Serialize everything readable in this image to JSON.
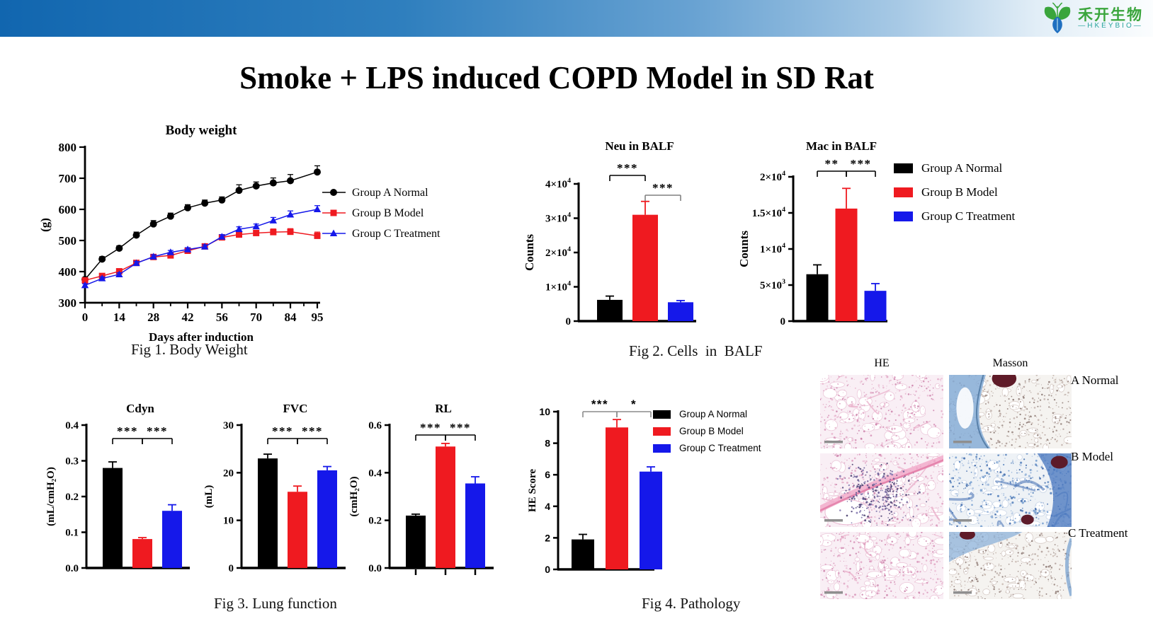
{
  "header": {
    "logo_cn": "禾开生物",
    "logo_en": "—HKEYBIO—"
  },
  "title": "Smoke + LPS induced COPD Model in SD Rat",
  "groups": [
    "Group A Normal",
    "Group B Model",
    "Group C Treatment"
  ],
  "colors": {
    "groupA": "#000000",
    "groupB": "#ef1a20",
    "groupC": "#1518ea",
    "topbar_left": "#1166af",
    "topbar_right": "#fbfdfe",
    "logo_green": "#3aa53c",
    "logo_teal": "#2aa49e",
    "bracket_gray": "#808080"
  },
  "captions": {
    "fig1": "Fig 1. Body Weight",
    "fig2": "Fig 2. Cells  in  BALF",
    "fig3": "Fig 3. Lung function",
    "fig4": "Fig 4. Pathology"
  },
  "chart_data": [
    {
      "id": "body_weight",
      "type": "line",
      "title": "Body weight",
      "ylabel": "(g)",
      "xlabel": "Days after induction",
      "ylim": [
        300,
        800
      ],
      "yticks": [
        300,
        400,
        500,
        600,
        700,
        800
      ],
      "xticks": [
        0,
        14,
        28,
        42,
        56,
        70,
        84,
        95
      ],
      "x": [
        0,
        7,
        14,
        21,
        28,
        35,
        42,
        49,
        56,
        63,
        70,
        77,
        84,
        95
      ],
      "series": [
        {
          "name": "Group A Normal",
          "color": "groupA",
          "marker": "circle",
          "values": [
            375,
            440,
            475,
            517,
            553,
            578,
            605,
            620,
            630,
            661,
            675,
            685,
            692,
            720
          ],
          "err": [
            6,
            8,
            8,
            10,
            11,
            10,
            10,
            10,
            10,
            18,
            13,
            16,
            20,
            20
          ]
        },
        {
          "name": "Group B Model",
          "color": "groupB",
          "marker": "square",
          "values": [
            372,
            386,
            401,
            428,
            447,
            452,
            467,
            481,
            510,
            519,
            524,
            527,
            528,
            515
          ],
          "err": [
            5,
            5,
            6,
            6,
            6,
            6,
            7,
            7,
            8,
            8,
            8,
            10,
            10,
            12
          ]
        },
        {
          "name": "Group C Treatment",
          "color": "groupC",
          "marker": "triangle",
          "values": [
            356,
            378,
            391,
            427,
            448,
            462,
            471,
            480,
            512,
            536,
            545,
            564,
            583,
            600
          ],
          "err": [
            5,
            5,
            5,
            6,
            6,
            6,
            6,
            6,
            7,
            8,
            8,
            10,
            12,
            12
          ]
        }
      ],
      "legend_position": "right"
    },
    {
      "id": "neu_balf",
      "type": "bar",
      "title": "Neu in BALF",
      "ylabel": "Counts",
      "categories": [
        "Group A Normal",
        "Group B Model",
        "Group C Treatment"
      ],
      "colors": [
        "groupA",
        "groupB",
        "groupC"
      ],
      "values": [
        6200,
        31000,
        5500
      ],
      "errors": [
        1100,
        3900,
        500
      ],
      "ylim": [
        0,
        40000
      ],
      "yticks": [
        [
          0,
          "0"
        ],
        [
          10000,
          "1×10",
          "4"
        ],
        [
          20000,
          "2×10",
          "4"
        ],
        [
          30000,
          "3×10",
          "4"
        ],
        [
          40000,
          "4×10",
          "4"
        ]
      ],
      "comparisons": [
        {
          "pair": [
            0,
            1
          ],
          "label": "***",
          "color": "#000000"
        },
        {
          "pair": [
            1,
            2
          ],
          "label": "***",
          "color": "#808080"
        }
      ]
    },
    {
      "id": "mac_balf",
      "type": "bar",
      "title": "Mac in BALF",
      "ylabel": "Counts",
      "categories": [
        "Group A Normal",
        "Group B Model",
        "Group C Treatment"
      ],
      "colors": [
        "groupA",
        "groupB",
        "groupC"
      ],
      "values": [
        6500,
        15600,
        4200
      ],
      "errors": [
        1300,
        2800,
        1000
      ],
      "ylim": [
        0,
        20000
      ],
      "yticks": [
        [
          0,
          "0"
        ],
        [
          5000,
          "5×10",
          "3"
        ],
        [
          10000,
          "1×10",
          "4"
        ],
        [
          15000,
          "1.5×10",
          "4"
        ],
        [
          20000,
          "2×10",
          "4"
        ]
      ],
      "comparisons": [
        {
          "pair": [
            0,
            1
          ],
          "label": "**",
          "color": "#000000"
        },
        {
          "pair": [
            1,
            2
          ],
          "label": "***",
          "color": "#000000"
        }
      ]
    },
    {
      "id": "cdyn",
      "type": "bar",
      "title": "Cdyn",
      "ylabel": "(mL/cmH₂O)",
      "categories": [
        "Group A Normal",
        "Group B Model",
        "Group C Treatment"
      ],
      "colors": [
        "groupA",
        "groupB",
        "groupC"
      ],
      "values": [
        0.28,
        0.081,
        0.16
      ],
      "errors": [
        0.017,
        0.004,
        0.017
      ],
      "ylim": [
        0,
        0.4
      ],
      "yticks": [
        [
          0,
          "0.0"
        ],
        [
          0.1,
          "0.1"
        ],
        [
          0.2,
          "0.2"
        ],
        [
          0.3,
          "0.3"
        ],
        [
          0.4,
          "0.4"
        ]
      ],
      "comparisons": [
        {
          "pair": [
            0,
            1
          ],
          "label": "***",
          "color": "#000000"
        },
        {
          "pair": [
            1,
            2
          ],
          "label": "***",
          "color": "#000000"
        }
      ]
    },
    {
      "id": "fvc",
      "type": "bar",
      "title": "FVC",
      "ylabel": "(mL)",
      "categories": [
        "Group A Normal",
        "Group B Model",
        "Group C Treatment"
      ],
      "colors": [
        "groupA",
        "groupB",
        "groupC"
      ],
      "values": [
        23,
        16,
        20.5
      ],
      "errors": [
        0.9,
        1.2,
        0.8
      ],
      "ylim": [
        0,
        30
      ],
      "yticks": [
        [
          0,
          "0"
        ],
        [
          10,
          "10"
        ],
        [
          20,
          "20"
        ],
        [
          30,
          "30"
        ]
      ],
      "comparisons": [
        {
          "pair": [
            0,
            1
          ],
          "label": "***",
          "color": "#000000"
        },
        {
          "pair": [
            1,
            2
          ],
          "label": "***",
          "color": "#000000"
        }
      ]
    },
    {
      "id": "rl",
      "type": "bar",
      "title": "RL",
      "ylabel": "(cmH₂O)",
      "categories": [
        "Group A Normal",
        "Group B Model",
        "Group C Treatment"
      ],
      "colors": [
        "groupA",
        "groupB",
        "groupC"
      ],
      "values": [
        0.22,
        0.51,
        0.355
      ],
      "errors": [
        0.006,
        0.013,
        0.028
      ],
      "ylim": [
        0,
        0.6
      ],
      "yticks": [
        [
          0,
          "0.0"
        ],
        [
          0.2,
          "0.2"
        ],
        [
          0.4,
          "0.4"
        ],
        [
          0.6,
          "0.6"
        ]
      ],
      "comparisons": [
        {
          "pair": [
            0,
            1
          ],
          "label": "***",
          "color": "#000000"
        },
        {
          "pair": [
            1,
            2
          ],
          "label": "***",
          "color": "#000000"
        }
      ]
    },
    {
      "id": "he_score",
      "type": "bar",
      "font": "sans",
      "title": "",
      "ylabel": "HE Score",
      "categories": [
        "Group A Normal",
        "Group B Model",
        "Group C Treatment"
      ],
      "colors": [
        "groupA",
        "groupB",
        "groupC"
      ],
      "values": [
        1.9,
        9.0,
        6.2
      ],
      "errors": [
        0.32,
        0.5,
        0.3
      ],
      "ylim": [
        0,
        10
      ],
      "yticks": [
        [
          0,
          "0"
        ],
        [
          2,
          "2"
        ],
        [
          4,
          "4"
        ],
        [
          6,
          "6"
        ],
        [
          8,
          "8"
        ],
        [
          10,
          "10"
        ]
      ],
      "comparisons": [
        {
          "pair": [
            0,
            1
          ],
          "label": "***",
          "color": "#8c8c8c"
        },
        {
          "pair": [
            1,
            2
          ],
          "label": "*",
          "color": "#8c8c8c"
        }
      ]
    }
  ],
  "pathology": {
    "columns": [
      "HE",
      "Masson"
    ],
    "rows": [
      "A Normal",
      "B Model",
      "C Treatment"
    ],
    "images": [
      {
        "stain": "HE",
        "variant": "normal",
        "row": "A Normal"
      },
      {
        "stain": "Masson",
        "variant": "normal",
        "row": "A Normal"
      },
      {
        "stain": "HE",
        "variant": "model",
        "row": "B Model"
      },
      {
        "stain": "Masson",
        "variant": "model",
        "row": "B Model"
      },
      {
        "stain": "HE",
        "variant": "treatment",
        "row": "C Treatment"
      },
      {
        "stain": "Masson",
        "variant": "treatment",
        "row": "C Treatment"
      }
    ]
  }
}
